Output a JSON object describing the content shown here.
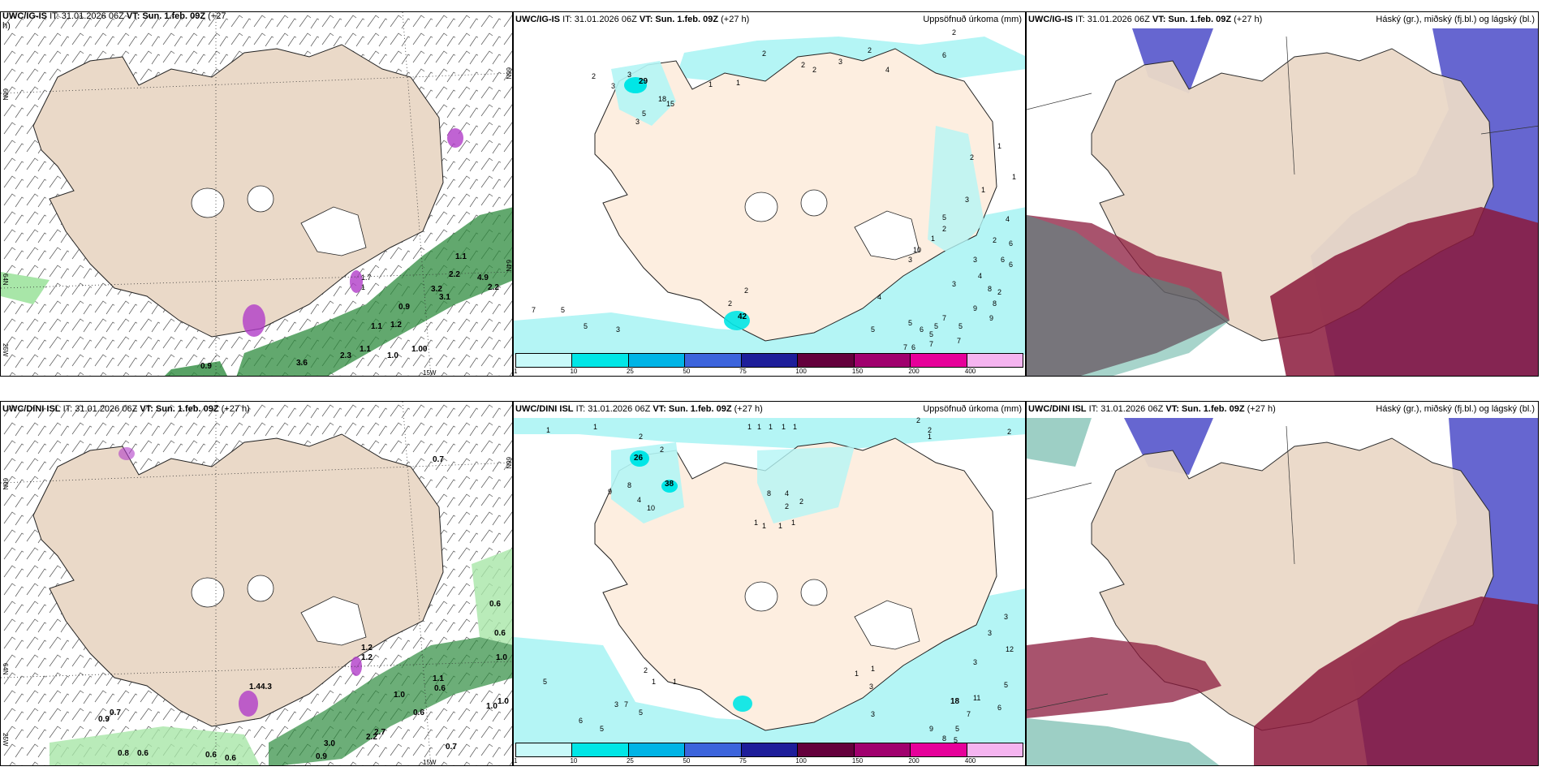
{
  "panels": {
    "p1": {
      "header_model": "UWC/IG-IS",
      "header_it": "IT: 31.01.2026 06Z",
      "header_vt": "VT: Sun. 1.feb. 09Z",
      "header_lead": "(+27",
      "header_lead2": "h)"
    },
    "p2": {
      "header_model": "UWC/IG-IS",
      "header_it": "IT: 31.01.2026 06Z",
      "header_vt": "VT: Sun. 1.feb. 09Z",
      "header_lead": "(+27 h)",
      "header_right": "Uppsöfnuð úrkoma (mm)"
    },
    "p3": {
      "header_model": "UWC/IG-IS",
      "header_it": "IT: 31.01.2026 06Z",
      "header_vt": "VT: Sun. 1.feb. 09Z",
      "header_lead": "(+27 h)",
      "header_right": "Háský (gr.), miðský (fj.bl.) og lágský (bl.)"
    },
    "p4": {
      "header_model": "UWC/DINI ISL",
      "header_it": "IT: 31.01.2026 06Z",
      "header_vt": "VT: Sun. 1.feb. 09Z",
      "header_lead": "(+27 h)"
    },
    "p5": {
      "header_model": "UWC/DINI ISL",
      "header_it": "IT: 31.01.2026 06Z",
      "header_vt": "VT: Sun. 1.feb. 09Z",
      "header_lead": "(+27 h)",
      "header_right": "Uppsöfnuð úrkoma (mm)"
    },
    "p6": {
      "header_model": "UWC/DINI ISL",
      "header_it": "IT: 31.01.2026 06Z",
      "header_vt": "VT: Sun. 1.feb. 09Z",
      "header_lead": "(+27 h)",
      "header_right": "Háský (gr.), miðský (fj.bl.) og lágský (bl.)"
    }
  },
  "coords": {
    "lat66": "66N",
    "lat64": "64N",
    "lon25": "25W",
    "lon15": "15W"
  },
  "legend": {
    "ticks": [
      "1",
      "10",
      "25",
      "50",
      "75",
      "100",
      "150",
      "200",
      "400"
    ],
    "colors": [
      "#c8fafa",
      "#00e6e6",
      "#00b4e6",
      "#3c64dc",
      "#1e1e9a",
      "#64003c",
      "#a0006e",
      "#e6009a",
      "#f5b4f0"
    ]
  },
  "wind_labels_top": [
    "0.9",
    "3.6",
    "2.3",
    "1.0",
    "1.1",
    "1.00",
    "1.1",
    "0.9",
    "3.1",
    "3.2",
    "2.2",
    "4.9",
    "2.2",
    "1.2",
    "1.1",
    "1.7",
    "1"
  ],
  "wind_labels_bottom": [
    "0.7",
    "0.6",
    "0.6",
    "1.0",
    "1.0",
    "1.2",
    "1.2",
    "1.4",
    "4.3",
    "2.7",
    "2.2",
    "3.0",
    "0.9",
    "0.7",
    "0.6",
    "0.6",
    "0.8",
    "0.6",
    "0.7",
    "0.9",
    "1.1",
    "1.0",
    "1.0",
    "0.6",
    "0.6"
  ],
  "precip_labels_top": [
    "2",
    "2",
    "2",
    "3",
    "2",
    "6",
    "4",
    "2",
    "1",
    "29",
    "15",
    "18",
    "3",
    "5",
    "3",
    "2",
    "3",
    "1",
    "1",
    "2",
    "3",
    "4",
    "5",
    "2",
    "3",
    "10",
    "6",
    "3",
    "4",
    "2",
    "6",
    "6",
    "8",
    "9",
    "9",
    "5",
    "7",
    "5",
    "7",
    "6",
    "5",
    "8",
    "7",
    "6",
    "5",
    "7",
    "5",
    "5",
    "3",
    "2",
    "42",
    "7",
    "4",
    "5",
    "3",
    "2",
    "1",
    "2",
    "1",
    "1"
  ],
  "precip_labels_bottom": [
    "1",
    "1",
    "1",
    "2",
    "2",
    "1",
    "2",
    "1",
    "1",
    "1",
    "26",
    "1",
    "38",
    "8",
    "4",
    "10",
    "9",
    "2",
    "2",
    "8",
    "4",
    "2",
    "2",
    "1",
    "1",
    "1",
    "1",
    "5",
    "7",
    "3",
    "6",
    "5",
    "5",
    "1",
    "1",
    "2",
    "1",
    "1",
    "3",
    "3",
    "3",
    "12",
    "3",
    "5",
    "6",
    "11",
    "18",
    "9",
    "7",
    "5",
    "8",
    "5",
    "3"
  ]
}
